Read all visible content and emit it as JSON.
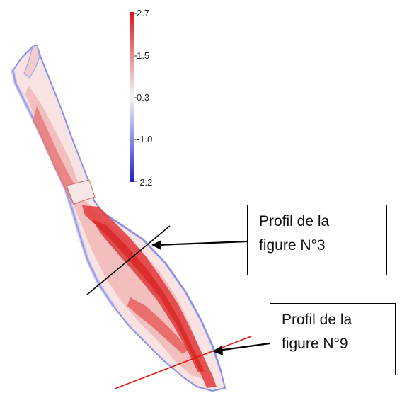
{
  "colorbar": {
    "ticks": [
      "2.7",
      "1.5",
      "0.3",
      "-1.0",
      "-2.2"
    ],
    "max_color": "#d7191c",
    "mid_color": "#f7f7f7",
    "min_color": "#1f1fd1"
  },
  "callouts": [
    {
      "line1": "Profil de la",
      "line2": "figure N°3",
      "profile_color": "#000000"
    },
    {
      "line1": "Profil de la",
      "line2": "figure N°9",
      "profile_color": "#e8140c"
    }
  ],
  "colors": {
    "river_fill_light": "#f6dada",
    "river_fill_mid": "#ee9f9f",
    "channel_red": "#e23b3b",
    "bank_blue": "#8a8ee8"
  }
}
